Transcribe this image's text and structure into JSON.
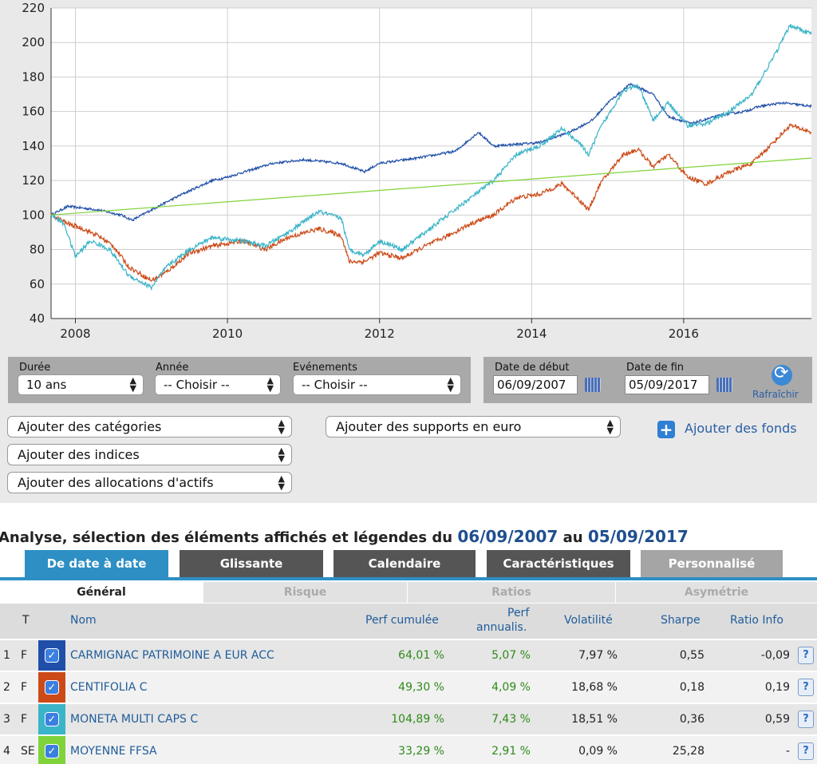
{
  "chart_data": {
    "type": "line",
    "x_ticks": [
      "2008",
      "2010",
      "2012",
      "2014",
      "2016"
    ],
    "y_ticks": [
      "40",
      "60",
      "80",
      "100",
      "120",
      "140",
      "160",
      "180",
      "200",
      "220"
    ],
    "ylim": [
      40,
      220
    ],
    "xlim": [
      2007.68,
      2017.68
    ],
    "grid": true,
    "legend": "none",
    "series": [
      {
        "color": "#1f4fa8",
        "points": [
          [
            2007.68,
            100
          ],
          [
            2007.9,
            105
          ],
          [
            2008.3,
            103
          ],
          [
            2008.6,
            100
          ],
          [
            2008.75,
            97
          ],
          [
            2009.0,
            103
          ],
          [
            2009.4,
            112
          ],
          [
            2009.8,
            120
          ],
          [
            2010.0,
            122
          ],
          [
            2010.3,
            126
          ],
          [
            2010.6,
            130
          ],
          [
            2011.0,
            132
          ],
          [
            2011.5,
            130
          ],
          [
            2011.8,
            125
          ],
          [
            2012.0,
            130
          ],
          [
            2012.5,
            133
          ],
          [
            2013.0,
            137
          ],
          [
            2013.3,
            148
          ],
          [
            2013.5,
            140
          ],
          [
            2013.8,
            141
          ],
          [
            2014.1,
            142
          ],
          [
            2014.5,
            148
          ],
          [
            2014.8,
            155
          ],
          [
            2015.0,
            165
          ],
          [
            2015.3,
            176
          ],
          [
            2015.6,
            170
          ],
          [
            2015.8,
            157
          ],
          [
            2016.1,
            153
          ],
          [
            2016.5,
            158
          ],
          [
            2016.8,
            160
          ],
          [
            2017.0,
            163
          ],
          [
            2017.3,
            165
          ],
          [
            2017.68,
            163
          ]
        ]
      },
      {
        "color": "#cc4a17",
        "points": [
          [
            2007.68,
            100
          ],
          [
            2007.9,
            95
          ],
          [
            2008.1,
            92
          ],
          [
            2008.3,
            88
          ],
          [
            2008.5,
            82
          ],
          [
            2008.7,
            70
          ],
          [
            2009.0,
            62
          ],
          [
            2009.2,
            67
          ],
          [
            2009.5,
            78
          ],
          [
            2009.8,
            82
          ],
          [
            2010.2,
            85
          ],
          [
            2010.5,
            80
          ],
          [
            2010.8,
            87
          ],
          [
            2011.2,
            92
          ],
          [
            2011.5,
            88
          ],
          [
            2011.6,
            73
          ],
          [
            2011.8,
            73
          ],
          [
            2012.0,
            78
          ],
          [
            2012.3,
            75
          ],
          [
            2012.6,
            82
          ],
          [
            2012.9,
            88
          ],
          [
            2013.2,
            95
          ],
          [
            2013.5,
            100
          ],
          [
            2013.8,
            110
          ],
          [
            2014.1,
            112
          ],
          [
            2014.4,
            118
          ],
          [
            2014.6,
            110
          ],
          [
            2014.75,
            103
          ],
          [
            2014.9,
            118
          ],
          [
            2015.2,
            135
          ],
          [
            2015.4,
            138
          ],
          [
            2015.6,
            128
          ],
          [
            2015.8,
            135
          ],
          [
            2016.05,
            122
          ],
          [
            2016.3,
            118
          ],
          [
            2016.6,
            125
          ],
          [
            2016.9,
            130
          ],
          [
            2017.2,
            143
          ],
          [
            2017.4,
            152
          ],
          [
            2017.68,
            148
          ]
        ]
      },
      {
        "color": "#3ab4c8",
        "points": [
          [
            2007.68,
            100
          ],
          [
            2007.85,
            95
          ],
          [
            2008.0,
            76
          ],
          [
            2008.2,
            85
          ],
          [
            2008.45,
            80
          ],
          [
            2008.7,
            65
          ],
          [
            2009.0,
            58
          ],
          [
            2009.2,
            70
          ],
          [
            2009.5,
            80
          ],
          [
            2009.8,
            87
          ],
          [
            2010.2,
            85
          ],
          [
            2010.5,
            82
          ],
          [
            2010.8,
            90
          ],
          [
            2011.2,
            102
          ],
          [
            2011.5,
            98
          ],
          [
            2011.6,
            80
          ],
          [
            2011.8,
            77
          ],
          [
            2012.0,
            85
          ],
          [
            2012.3,
            80
          ],
          [
            2012.6,
            90
          ],
          [
            2012.9,
            100
          ],
          [
            2013.2,
            110
          ],
          [
            2013.5,
            120
          ],
          [
            2013.8,
            135
          ],
          [
            2014.1,
            140
          ],
          [
            2014.4,
            150
          ],
          [
            2014.6,
            143
          ],
          [
            2014.75,
            135
          ],
          [
            2014.9,
            150
          ],
          [
            2015.2,
            172
          ],
          [
            2015.4,
            175
          ],
          [
            2015.6,
            155
          ],
          [
            2015.8,
            165
          ],
          [
            2016.05,
            152
          ],
          [
            2016.3,
            153
          ],
          [
            2016.6,
            160
          ],
          [
            2016.9,
            170
          ],
          [
            2017.2,
            193
          ],
          [
            2017.4,
            210
          ],
          [
            2017.68,
            205
          ]
        ]
      },
      {
        "color": "#7fd33a",
        "points": [
          [
            2007.68,
            100
          ],
          [
            2017.68,
            133
          ]
        ]
      }
    ]
  },
  "controls": {
    "duree_label": "Durée",
    "duree_value": "10 ans",
    "annee_label": "Année",
    "annee_value": "-- Choisir --",
    "evenements_label": "Evénements",
    "evenements_value": "-- Choisir --",
    "date_debut_label": "Date de début",
    "date_debut_value": "06/09/2007",
    "date_fin_label": "Date de fin",
    "date_fin_value": "05/09/2017",
    "rafraichir_label": "Rafraîchir",
    "add_categories": "Ajouter des catégories",
    "add_indices": "Ajouter des indices",
    "add_allocations": "Ajouter des allocations d'actifs",
    "add_supports": "Ajouter des supports en euro",
    "add_fonds": "Ajouter des fonds"
  },
  "analysis": {
    "title_prefix": "Analyse, sélection des éléments affichés et légendes du",
    "date_from": "06/09/2007",
    "title_mid": "au",
    "date_to": "05/09/2017",
    "tabs": [
      "De date à date",
      "Glissante",
      "Calendaire",
      "Caractéristiques",
      "Personnalisé"
    ],
    "subtabs": [
      "Général",
      "Risque",
      "Ratios",
      "Asymétrie"
    ],
    "columns": {
      "t": "T",
      "nom": "Nom",
      "perf_cumulee": "Perf cumulée",
      "perf_annualis_1": "Perf",
      "perf_annualis_2": "annualis.",
      "volatilite": "Volatilité",
      "sharpe": "Sharpe",
      "ratio_info": "Ratio Info"
    },
    "rows": [
      {
        "num": "1",
        "type": "F",
        "color": "#1f4fa8",
        "nom": "CARMIGNAC PATRIMOINE A EUR ACC",
        "perf_cumulee": "64,01 %",
        "perf_annualisee": "5,07 %",
        "volatilite": "7,97 %",
        "sharpe": "0,55",
        "ratio_info": "-0,09"
      },
      {
        "num": "2",
        "type": "F",
        "color": "#cc4a17",
        "nom": "CENTIFOLIA C",
        "perf_cumulee": "49,30 %",
        "perf_annualisee": "4,09 %",
        "volatilite": "18,68 %",
        "sharpe": "0,18",
        "ratio_info": "0,19"
      },
      {
        "num": "3",
        "type": "F",
        "color": "#3ab4c8",
        "nom": "MONETA MULTI CAPS C",
        "perf_cumulee": "104,89 %",
        "perf_annualisee": "7,43 %",
        "volatilite": "18,51 %",
        "sharpe": "0,36",
        "ratio_info": "0,59"
      },
      {
        "num": "4",
        "type": "SE",
        "color": "#7fd33a",
        "nom": "MOYENNE FFSA",
        "perf_cumulee": "33,29 %",
        "perf_annualisee": "2,91 %",
        "volatilite": "0,09 %",
        "sharpe": "25,28",
        "ratio_info": "-"
      }
    ]
  }
}
